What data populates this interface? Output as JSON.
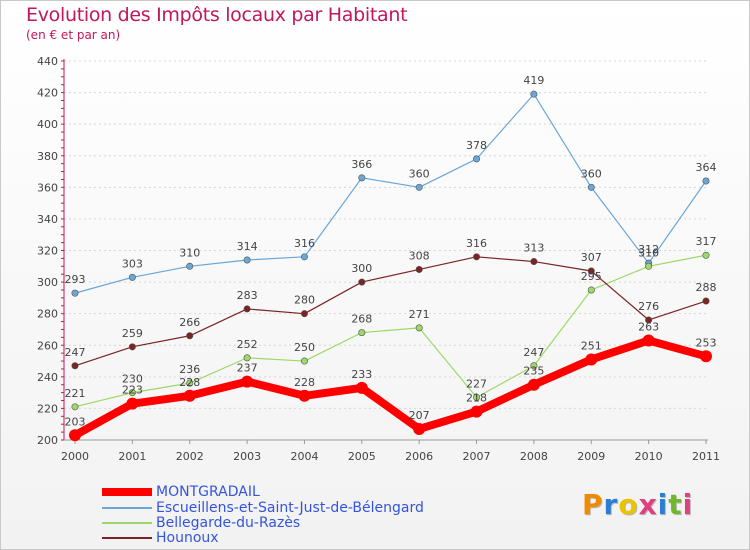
{
  "header": {
    "title": "Evolution des Impôts locaux par Habitant",
    "subtitle": "(en € et par an)"
  },
  "logo": {
    "text": "Proxiti",
    "colors": [
      "#f08a00",
      "#2a7fd4",
      "#e8c500",
      "#e04080",
      "#2a7fd4",
      "#73b72b",
      "#e04080"
    ]
  },
  "chart_data": {
    "type": "line",
    "title": "Evolution des Impôts locaux par Habitant",
    "subtitle": "(en € et par an)",
    "xlabel": "",
    "ylabel": "",
    "categories": [
      "2000",
      "2001",
      "2002",
      "2003",
      "2004",
      "2005",
      "2006",
      "2007",
      "2008",
      "2009",
      "2010",
      "2011"
    ],
    "ylim": [
      200,
      440
    ],
    "yticks": [
      200,
      220,
      240,
      260,
      280,
      300,
      320,
      340,
      360,
      380,
      400,
      420,
      440
    ],
    "grid": "horizontal dashed",
    "legend_position": "bottom-left",
    "series": [
      {
        "name": "MONTGRADAIL",
        "color": "#ff0000",
        "values": [
          203,
          223,
          228,
          237,
          228,
          233,
          207,
          218,
          235,
          251,
          263,
          253
        ]
      },
      {
        "name": "Escueillens-et-Saint-Just-de-Bélengard",
        "color": "#6aa6d6",
        "values": [
          293,
          303,
          310,
          314,
          316,
          366,
          360,
          378,
          419,
          360,
          312,
          364
        ]
      },
      {
        "name": "Bellegarde-du-Razès",
        "color": "#9ed86a",
        "values": [
          221,
          230,
          236,
          252,
          250,
          268,
          271,
          227,
          247,
          295,
          310,
          317
        ]
      },
      {
        "name": "Hounoux",
        "color": "#7a2424",
        "values": [
          247,
          259,
          266,
          283,
          280,
          300,
          308,
          316,
          313,
          307,
          276,
          288
        ]
      }
    ]
  }
}
